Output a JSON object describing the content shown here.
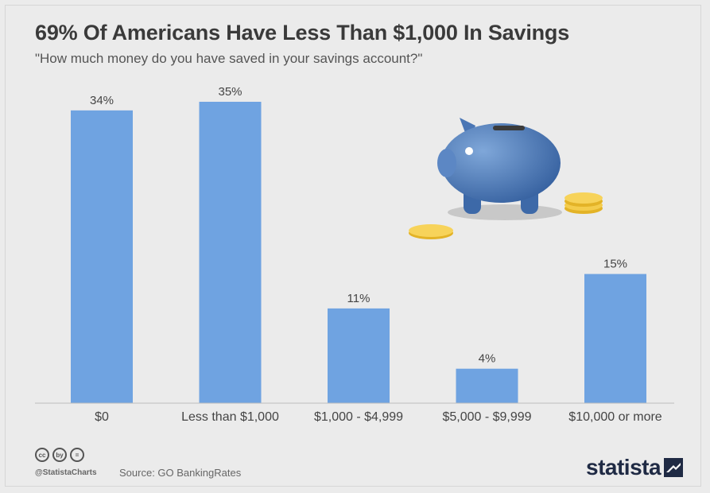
{
  "chart_data": {
    "type": "bar",
    "title": "69% Of Americans Have Less Than $1,000 In Savings",
    "subtitle": "\"How much money do you have saved in your savings account?\"",
    "categories": [
      "$0",
      "Less than $1,000",
      "$1,000 - $4,999",
      "$5,000 - $9,999",
      "$10,000 or more"
    ],
    "values": [
      34,
      35,
      11,
      4,
      15
    ],
    "data_labels": [
      "34%",
      "35%",
      "11%",
      "4%",
      "15%"
    ],
    "ylim": [
      0,
      35
    ],
    "xlabel": "",
    "ylabel": "",
    "bar_color": "#6fa3e1",
    "grid": false,
    "legend": "none"
  },
  "footer": {
    "cc_icons": [
      "cc",
      "by",
      "="
    ],
    "handle": "@StatistaCharts",
    "source": "Source: GO BankingRates"
  },
  "brand": {
    "name": "statista",
    "color": "#1f2a44"
  },
  "illustration": {
    "icon": "piggy-bank-icon",
    "coin_icon": "coin-icon"
  }
}
